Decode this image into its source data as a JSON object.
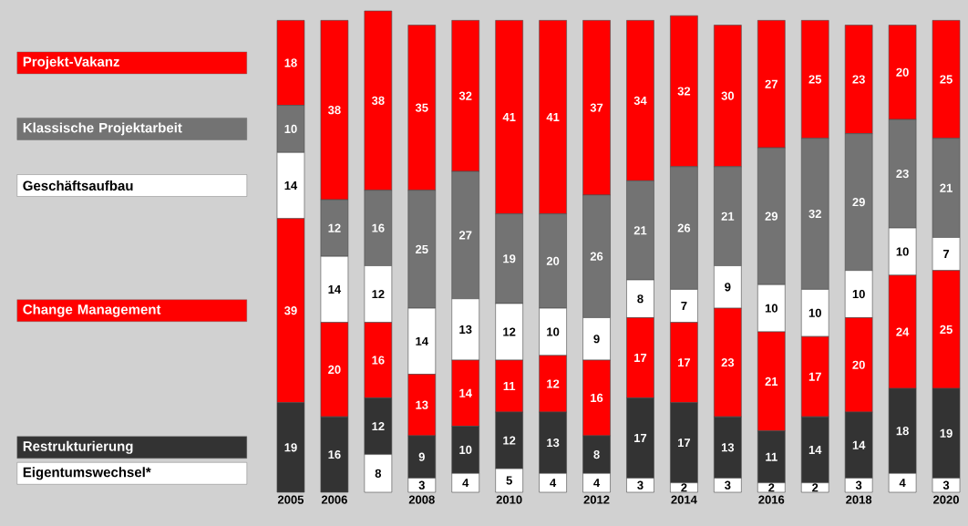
{
  "chart_data": {
    "type": "bar",
    "stacked": true,
    "data_labels": true,
    "legend": "left",
    "categories": [
      "2005",
      "2006",
      null,
      "2008",
      null,
      "2010",
      null,
      "2012",
      null,
      "2014",
      null,
      "2016",
      null,
      "2018",
      null,
      "2020"
    ],
    "series": [
      {
        "name": "Eigentumswechsel*",
        "color": "#ffffff",
        "values": [
          null,
          null,
          8,
          3,
          4,
          5,
          4,
          4,
          3,
          2,
          3,
          2,
          2,
          3,
          4,
          3
        ]
      },
      {
        "name": "Restrukturierung",
        "color": "#333333",
        "values": [
          19,
          16,
          12,
          9,
          10,
          12,
          13,
          8,
          17,
          17,
          13,
          11,
          14,
          14,
          18,
          19
        ]
      },
      {
        "name": "Change Management",
        "color": "#ff0000",
        "values": [
          39,
          20,
          16,
          13,
          14,
          11,
          12,
          16,
          17,
          17,
          23,
          21,
          17,
          20,
          24,
          25
        ]
      },
      {
        "name": "Geschäftsaufbau",
        "color": "#ffffff",
        "values": [
          14,
          14,
          12,
          14,
          13,
          12,
          10,
          9,
          8,
          7,
          9,
          10,
          10,
          10,
          10,
          7
        ]
      },
      {
        "name": "Klassische Projektarbeit",
        "color": "#737373",
        "values": [
          10,
          12,
          16,
          25,
          27,
          19,
          20,
          26,
          21,
          26,
          21,
          29,
          32,
          29,
          23,
          21
        ]
      },
      {
        "name": "Projekt-Vakanz",
        "color": "#ff0000",
        "values": [
          18,
          38,
          38,
          35,
          32,
          41,
          41,
          37,
          34,
          32,
          30,
          27,
          25,
          23,
          20,
          25
        ]
      }
    ]
  }
}
